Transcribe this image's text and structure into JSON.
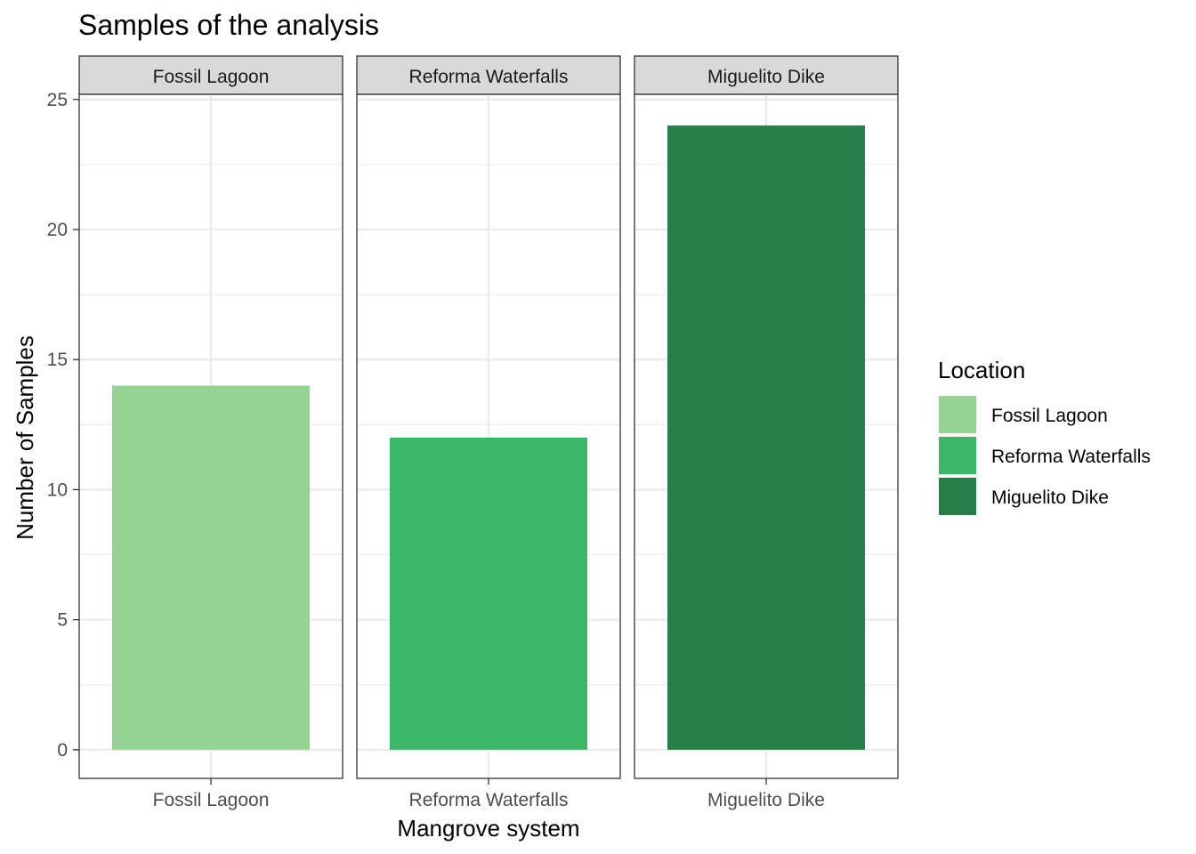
{
  "chart_data": {
    "type": "bar",
    "title": "Samples of the analysis",
    "xlabel": "Mangrove system",
    "ylabel": "Number of Samples",
    "ylim": [
      -1.1,
      25.2
    ],
    "yticks": [
      0,
      5,
      10,
      15,
      20,
      25
    ],
    "grid": true,
    "facets": [
      "Fossil Lagoon",
      "Reforma Waterfalls",
      "Miguelito Dike"
    ],
    "categories": [
      "Fossil Lagoon",
      "Reforma Waterfalls",
      "Miguelito Dike"
    ],
    "values": [
      14,
      12,
      24
    ],
    "colors": [
      "#95d395",
      "#3bb867",
      "#267f46"
    ],
    "legend": {
      "title": "Location",
      "position": "right",
      "entries": [
        "Fossil Lagoon",
        "Reforma Waterfalls",
        "Miguelito Dike"
      ]
    }
  }
}
